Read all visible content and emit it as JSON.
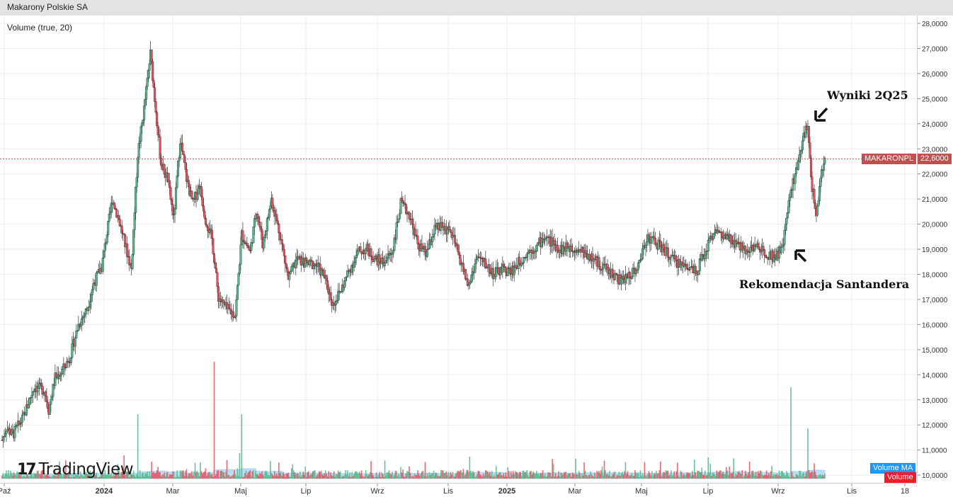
{
  "header": {
    "title": "Makarony Polskie SA"
  },
  "volume_indicator_label": "Volume (true, 20)",
  "symbol_tag": "MAKARONPL",
  "last_price_label": "22,6000",
  "volume_ma_tag": "Volume MA",
  "volume_tag": "Volume",
  "logo_text": "TradingView",
  "annotations": {
    "top": "Wyniki 2Q25",
    "bottom": "Rekomendacja Santandera"
  },
  "colors": {
    "up": "#53b987",
    "down": "#eb4d5c",
    "volume_ma": "#7ec5ee",
    "grid": "#eeeeee",
    "last_price": "#c0504d",
    "volume_ma_tag": "#2196f3",
    "volume_tag": "#ee1d24"
  },
  "chart_data": {
    "type": "candlestick",
    "title": "",
    "ylabel": "",
    "ylim": [
      9.7,
      28.4
    ],
    "y_ticks": [
      "28,0000",
      "27,0000",
      "26,0000",
      "25,0000",
      "24,0000",
      "23,0000",
      "22,0000",
      "21,0000",
      "20,0000",
      "19,0000",
      "18,0000",
      "17,0000",
      "16,0000",
      "15,0000",
      "14,0000",
      "13,0000",
      "12,0000",
      "11,0000",
      "10,0000"
    ],
    "x_ticks": [
      "Paź",
      "2024",
      "Mar",
      "Maj",
      "Lip",
      "Wrz",
      "Lis",
      "2025",
      "Mar",
      "Maj",
      "Lip",
      "Wrz",
      "Lis",
      "18"
    ],
    "last_price": 22.6,
    "close_series": [
      {
        "t": 0,
        "v": 11.4
      },
      {
        "t": 2,
        "v": 11.9
      },
      {
        "t": 5,
        "v": 11.6
      },
      {
        "t": 10,
        "v": 12.3
      },
      {
        "t": 15,
        "v": 13.5
      },
      {
        "t": 20,
        "v": 13.4
      },
      {
        "t": 22,
        "v": 12.6
      },
      {
        "t": 25,
        "v": 13.9
      },
      {
        "t": 28,
        "v": 14.1
      },
      {
        "t": 32,
        "v": 14.7
      },
      {
        "t": 36,
        "v": 16.0
      },
      {
        "t": 40,
        "v": 16.6
      },
      {
        "t": 43,
        "v": 17.6
      },
      {
        "t": 47,
        "v": 18.3
      },
      {
        "t": 52,
        "v": 21.0
      },
      {
        "t": 55,
        "v": 20.2
      },
      {
        "t": 58,
        "v": 19.2
      },
      {
        "t": 61,
        "v": 18.2
      },
      {
        "t": 64,
        "v": 22.8
      },
      {
        "t": 67,
        "v": 24.6
      },
      {
        "t": 70,
        "v": 26.8
      },
      {
        "t": 72,
        "v": 25.0
      },
      {
        "t": 75,
        "v": 22.4
      },
      {
        "t": 78,
        "v": 21.8
      },
      {
        "t": 81,
        "v": 20.2
      },
      {
        "t": 84,
        "v": 23.4
      },
      {
        "t": 87,
        "v": 21.8
      },
      {
        "t": 90,
        "v": 20.8
      },
      {
        "t": 93,
        "v": 21.6
      },
      {
        "t": 96,
        "v": 20.2
      },
      {
        "t": 99,
        "v": 19.4
      },
      {
        "t": 102,
        "v": 17.1
      },
      {
        "t": 106,
        "v": 16.6
      },
      {
        "t": 110,
        "v": 16.4
      },
      {
        "t": 113,
        "v": 19.6
      },
      {
        "t": 117,
        "v": 18.9
      },
      {
        "t": 120,
        "v": 20.6
      },
      {
        "t": 123,
        "v": 19.2
      },
      {
        "t": 127,
        "v": 21.0
      },
      {
        "t": 131,
        "v": 19.6
      },
      {
        "t": 135,
        "v": 17.8
      },
      {
        "t": 139,
        "v": 18.6
      },
      {
        "t": 144,
        "v": 18.4
      },
      {
        "t": 148,
        "v": 18.4
      },
      {
        "t": 152,
        "v": 17.9
      },
      {
        "t": 156,
        "v": 16.8
      },
      {
        "t": 160,
        "v": 17.4
      },
      {
        "t": 164,
        "v": 18.2
      },
      {
        "t": 168,
        "v": 18.9
      },
      {
        "t": 172,
        "v": 19.0
      },
      {
        "t": 176,
        "v": 18.6
      },
      {
        "t": 180,
        "v": 18.5
      },
      {
        "t": 184,
        "v": 18.9
      },
      {
        "t": 188,
        "v": 20.8
      },
      {
        "t": 192,
        "v": 20.4
      },
      {
        "t": 196,
        "v": 19.2
      },
      {
        "t": 200,
        "v": 18.8
      },
      {
        "t": 204,
        "v": 19.8
      },
      {
        "t": 208,
        "v": 19.9
      },
      {
        "t": 212,
        "v": 19.6
      },
      {
        "t": 216,
        "v": 18.6
      },
      {
        "t": 220,
        "v": 17.5
      },
      {
        "t": 224,
        "v": 18.7
      },
      {
        "t": 228,
        "v": 18.4
      },
      {
        "t": 232,
        "v": 18.0
      },
      {
        "t": 236,
        "v": 18.2
      },
      {
        "t": 240,
        "v": 18.1
      },
      {
        "t": 244,
        "v": 18.5
      },
      {
        "t": 248,
        "v": 18.9
      },
      {
        "t": 252,
        "v": 19.1
      },
      {
        "t": 256,
        "v": 19.5
      },
      {
        "t": 260,
        "v": 19.2
      },
      {
        "t": 264,
        "v": 19.0
      },
      {
        "t": 268,
        "v": 19.1
      },
      {
        "t": 272,
        "v": 19.0
      },
      {
        "t": 276,
        "v": 18.8
      },
      {
        "t": 280,
        "v": 18.5
      },
      {
        "t": 284,
        "v": 18.3
      },
      {
        "t": 288,
        "v": 18.0
      },
      {
        "t": 292,
        "v": 17.7
      },
      {
        "t": 296,
        "v": 18.0
      },
      {
        "t": 300,
        "v": 18.3
      },
      {
        "t": 304,
        "v": 19.5
      },
      {
        "t": 308,
        "v": 19.3
      },
      {
        "t": 312,
        "v": 19.0
      },
      {
        "t": 316,
        "v": 18.6
      },
      {
        "t": 320,
        "v": 18.4
      },
      {
        "t": 324,
        "v": 18.3
      },
      {
        "t": 328,
        "v": 18.2
      },
      {
        "t": 332,
        "v": 19.0
      },
      {
        "t": 336,
        "v": 19.8
      },
      {
        "t": 340,
        "v": 19.5
      },
      {
        "t": 344,
        "v": 19.3
      },
      {
        "t": 348,
        "v": 19.1
      },
      {
        "t": 352,
        "v": 19.0
      },
      {
        "t": 356,
        "v": 19.1
      },
      {
        "t": 360,
        "v": 18.9
      },
      {
        "t": 364,
        "v": 18.7
      },
      {
        "t": 368,
        "v": 19.0
      },
      {
        "t": 372,
        "v": 21.4
      },
      {
        "t": 375,
        "v": 22.2
      },
      {
        "t": 378,
        "v": 23.6
      },
      {
        "t": 380,
        "v": 23.8
      },
      {
        "t": 382,
        "v": 21.5
      },
      {
        "t": 384,
        "v": 20.3
      },
      {
        "t": 386,
        "v": 21.8
      },
      {
        "t": 388,
        "v": 22.6
      }
    ],
    "volume_spikes": [
      {
        "t": 64,
        "v": 0.55
      },
      {
        "t": 100,
        "v": 1.0
      },
      {
        "t": 113,
        "v": 0.55
      },
      {
        "t": 372,
        "v": 0.78
      },
      {
        "t": 380,
        "v": 0.43
      }
    ]
  }
}
